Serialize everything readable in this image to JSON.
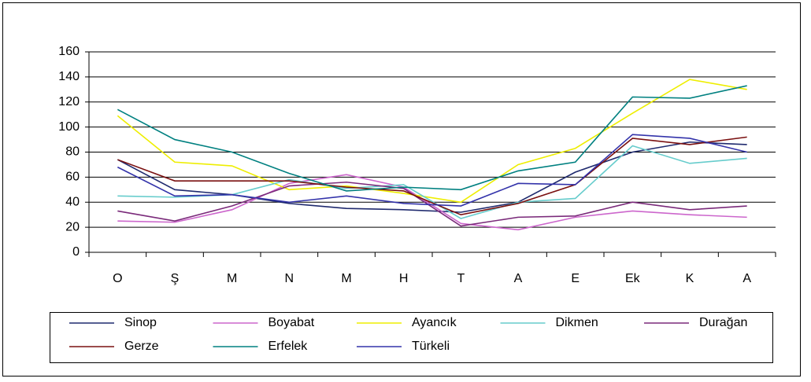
{
  "chart_data": {
    "type": "line",
    "categories": [
      "O",
      "Ş",
      "M",
      "N",
      "M",
      "H",
      "T",
      "A",
      "E",
      "Ek",
      "K",
      "A"
    ],
    "series": [
      {
        "name": "Sinop",
        "color": "#1f2a6e",
        "values": [
          74,
          50,
          46,
          39,
          35,
          34,
          32,
          40,
          64,
          80,
          88,
          86
        ]
      },
      {
        "name": "Boyabat",
        "color": "#cc66cc",
        "values": [
          25,
          24,
          34,
          55,
          62,
          52,
          23,
          18,
          28,
          33,
          30,
          28
        ]
      },
      {
        "name": "Ayancık",
        "color": "#eeee00",
        "values": [
          109,
          72,
          69,
          50,
          53,
          47,
          40,
          70,
          83,
          111,
          138,
          130
        ]
      },
      {
        "name": "Dikmen",
        "color": "#66cccc",
        "values": [
          45,
          44,
          46,
          58,
          51,
          54,
          27,
          40,
          43,
          85,
          71,
          75
        ]
      },
      {
        "name": "Durağan",
        "color": "#7a2a7a",
        "values": [
          33,
          25,
          37,
          53,
          56,
          51,
          21,
          28,
          29,
          40,
          34,
          37
        ]
      },
      {
        "name": "Gerze",
        "color": "#7a1010",
        "values": [
          74,
          57,
          57,
          57,
          52,
          49,
          30,
          39,
          54,
          91,
          86,
          92
        ]
      },
      {
        "name": "Erfelek",
        "color": "#008080",
        "values": [
          114,
          90,
          80,
          63,
          49,
          52,
          50,
          65,
          72,
          124,
          123,
          133
        ]
      },
      {
        "name": "Türkeli",
        "color": "#3333aa",
        "values": [
          68,
          45,
          46,
          40,
          45,
          39,
          37,
          55,
          54,
          94,
          91,
          80
        ]
      }
    ],
    "ylim": [
      0,
      160
    ],
    "yticks": [
      0,
      20,
      40,
      60,
      80,
      100,
      120,
      140,
      160
    ],
    "grid": true,
    "legend": "bottom"
  }
}
